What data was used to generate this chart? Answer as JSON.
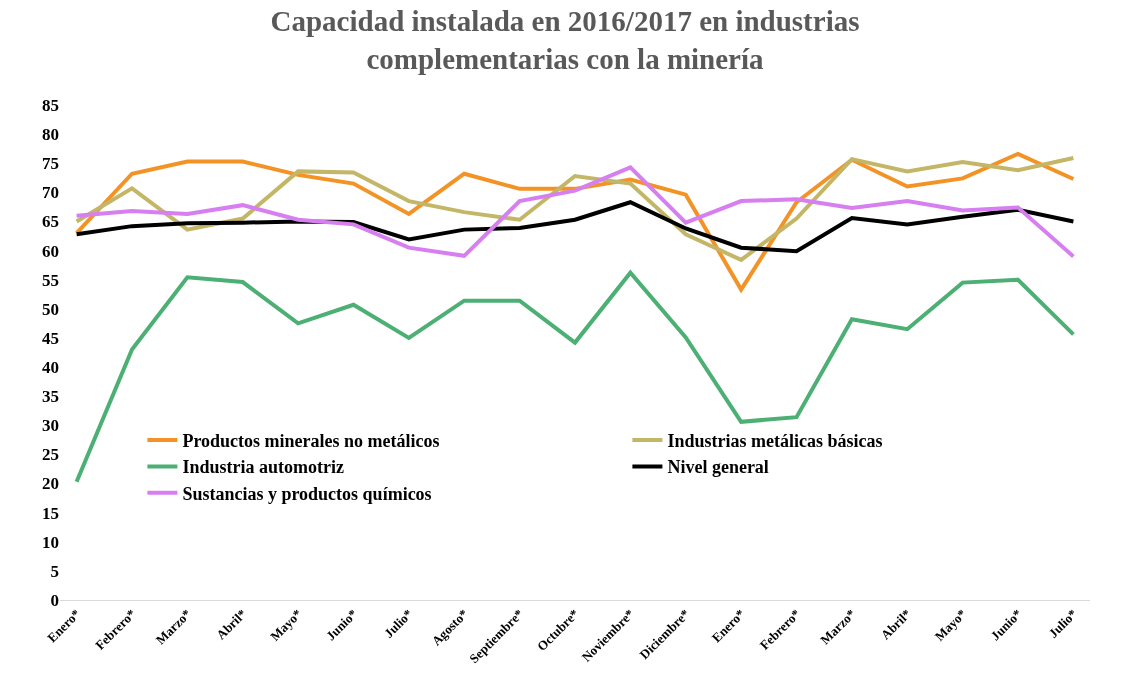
{
  "chart_data": {
    "type": "line",
    "title": "Capacidad instalada en 2016/2017 en industrias complementarias con la minería",
    "categories": [
      "Enero*",
      "Febrero*",
      "Marzo*",
      "Abril*",
      "Mayo*",
      "Junio*",
      "Julio*",
      "Agosto*",
      "Septiembre*",
      "Octubre*",
      "Noviembre*",
      "Diciembre*",
      "Enero*",
      "Febrero*",
      "Marzo*",
      "Abril*",
      "Mayo*",
      "Junio*",
      "Julio*"
    ],
    "series": [
      {
        "name": "Productos minerales no metálicos",
        "color": "#f39325",
        "values": [
          63,
          73.2,
          75.3,
          75.3,
          73,
          71.5,
          66.3,
          73.2,
          70.6,
          70.6,
          72.2,
          69.6,
          53.3,
          68.3,
          75.6,
          71,
          72.4,
          76.6,
          72.3
        ]
      },
      {
        "name": "Industrias metálicas básicas",
        "color": "#c3b667",
        "values": [
          65,
          70.7,
          63.6,
          65.5,
          73.6,
          73.4,
          68.5,
          66.6,
          65.3,
          72.8,
          71.5,
          62.8,
          58.4,
          65.5,
          75.7,
          73.6,
          75.2,
          73.8,
          75.9
        ]
      },
      {
        "name": "Industria automotriz",
        "color": "#4caf73",
        "values": [
          20.3,
          43,
          55.4,
          54.6,
          47.5,
          50.7,
          45,
          51.4,
          51.4,
          44.2,
          56.2,
          45.1,
          30.6,
          31.4,
          48.2,
          46.5,
          54.5,
          55,
          45.6
        ]
      },
      {
        "name": "Nivel general",
        "color": "#000000",
        "values": [
          62.8,
          64.2,
          64.7,
          64.8,
          65,
          64.9,
          61.9,
          63.6,
          63.9,
          65.3,
          68.3,
          63.8,
          60.5,
          59.9,
          65.6,
          64.5,
          65.8,
          67,
          65
        ]
      },
      {
        "name": "Sustancias y productos químicos",
        "color": "#d77ef0",
        "values": [
          66,
          66.8,
          66.3,
          67.8,
          65.3,
          64.5,
          60.5,
          59.1,
          68.5,
          70.3,
          74.3,
          64.8,
          68.5,
          68.8,
          67.3,
          68.5,
          66.9,
          67.4,
          59
        ]
      }
    ],
    "ylim": [
      0,
      85
    ],
    "yticks": [
      0,
      5,
      10,
      15,
      20,
      25,
      30,
      35,
      40,
      45,
      50,
      55,
      60,
      65,
      70,
      75,
      80,
      85
    ],
    "legend": "bottom",
    "marker": "none",
    "line_style": "solid"
  }
}
